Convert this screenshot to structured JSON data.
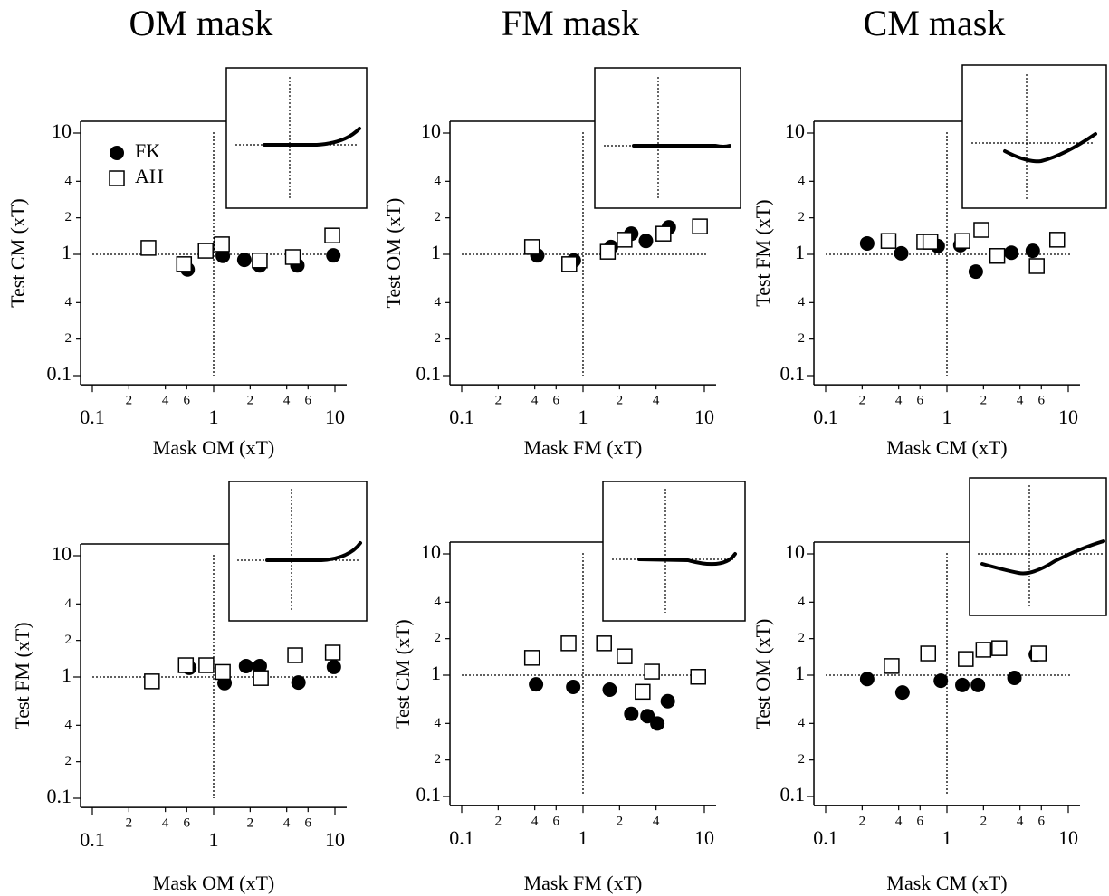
{
  "chart_data": [
    {
      "type": "scatter",
      "title": "OM mask",
      "x_label": "Mask OM (xT)",
      "y_label": "Test CM (xT)",
      "log_x": true,
      "log_y": true,
      "legend": true,
      "xlim": [
        0.08,
        12.5
      ],
      "ylim": [
        0.084,
        12.5
      ],
      "xticks": [
        0.1,
        {
          "value": 0.2,
          "label": "2"
        },
        {
          "value": 0.4,
          "label": "4"
        },
        {
          "value": 0.6,
          "label": "6"
        },
        1,
        2,
        4,
        6,
        10
      ],
      "yticks": [
        0.1,
        {
          "value": 0.2,
          "label": "2"
        },
        {
          "value": 0.4,
          "label": "4"
        },
        1,
        2,
        4,
        10
      ],
      "hline": 1,
      "vline": 1,
      "series": [
        {
          "name": "FK",
          "color": "#000000",
          "marker": "circle",
          "x": [
            0.61,
            1.19,
            1.79,
            2.4,
            4.9,
            9.7
          ],
          "values": [
            0.75,
            0.97,
            0.9,
            0.81,
            0.81,
            0.98
          ]
        },
        {
          "name": "AH",
          "color": "#000000",
          "marker": "square",
          "x": [
            0.29,
            0.57,
            0.86,
            1.17,
            2.4,
            4.5,
            9.5
          ],
          "values": [
            1.13,
            0.83,
            1.07,
            1.21,
            0.89,
            0.95,
            1.43
          ]
        }
      ]
    },
    {
      "type": "scatter",
      "title": "FM mask",
      "x_label": "Mask FM (xT)",
      "y_label": "Test OM (xT)",
      "log_x": true,
      "log_y": true,
      "xlim": [
        0.08,
        12.5
      ],
      "ylim": [
        0.084,
        12.5
      ],
      "xticks": [
        0.1,
        {
          "value": 0.2,
          "label": "2"
        },
        {
          "value": 0.4,
          "label": "4"
        },
        {
          "value": 0.6,
          "label": "6"
        },
        1,
        2,
        4,
        10
      ],
      "yticks": [
        0.1,
        {
          "value": 0.2,
          "label": "2"
        },
        {
          "value": 0.4,
          "label": "4"
        },
        1,
        2,
        4,
        10
      ],
      "hline": 1,
      "vline": 1,
      "series": [
        {
          "color": "#000000",
          "marker": "circle",
          "x": [
            0.42,
            0.84,
            1.7,
            2.5,
            3.3,
            5.1
          ],
          "values": [
            0.98,
            0.89,
            1.15,
            1.48,
            1.29,
            1.67
          ]
        },
        {
          "color": "#000000",
          "marker": "square",
          "x": [
            0.38,
            0.77,
            1.6,
            2.2,
            4.6,
            9.2
          ],
          "values": [
            1.15,
            0.83,
            1.05,
            1.32,
            1.48,
            1.7
          ]
        }
      ]
    },
    {
      "type": "scatter",
      "title": "CM mask",
      "x_label": "Mask CM (xT)",
      "y_label": "Test FM (xT)",
      "log_x": true,
      "log_y": true,
      "xlim": [
        0.08,
        12.5
      ],
      "ylim": [
        0.084,
        12.5
      ],
      "xticks": [
        0.1,
        {
          "value": 0.2,
          "label": "2"
        },
        {
          "value": 0.4,
          "label": "4"
        },
        {
          "value": 0.6,
          "label": "6"
        },
        1,
        2,
        4,
        6,
        10
      ],
      "yticks": [
        0.1,
        {
          "value": 0.2,
          "label": "2"
        },
        {
          "value": 0.4,
          "label": "4"
        },
        1,
        2,
        4,
        10
      ],
      "hline": 1,
      "vline": 1,
      "series": [
        {
          "color": "#000000",
          "marker": "circle",
          "x": [
            0.22,
            0.42,
            0.84,
            1.29,
            1.73,
            3.4,
            5.1
          ],
          "values": [
            1.23,
            1.02,
            1.17,
            1.19,
            0.72,
            1.03,
            1.07
          ]
        },
        {
          "color": "#000000",
          "marker": "square",
          "x": [
            0.33,
            0.65,
            0.73,
            1.34,
            1.92,
            2.6,
            5.5,
            8.1
          ],
          "values": [
            1.29,
            1.27,
            1.27,
            1.29,
            1.59,
            0.97,
            0.8,
            1.32
          ]
        }
      ]
    },
    {
      "type": "scatter",
      "x_label": "Mask OM (xT)",
      "y_label": "Test FM (xT)",
      "log_x": true,
      "log_y": true,
      "xlim": [
        0.08,
        12.5
      ],
      "ylim": [
        0.084,
        12.5
      ],
      "xticks": [
        0.1,
        {
          "value": 0.2,
          "label": "2"
        },
        {
          "value": 0.4,
          "label": "4"
        },
        {
          "value": 0.6,
          "label": "6"
        },
        1,
        2,
        4,
        6,
        10
      ],
      "yticks": [
        0.1,
        {
          "value": 0.2,
          "label": "2"
        },
        {
          "value": 0.4,
          "label": "4"
        },
        1,
        2,
        4,
        10
      ],
      "hline": 1,
      "vline": 1,
      "series": [
        {
          "color": "#000000",
          "marker": "circle",
          "x": [
            0.63,
            1.23,
            1.85,
            2.4,
            5.0,
            9.8
          ],
          "values": [
            1.19,
            0.89,
            1.23,
            1.23,
            0.9,
            1.21
          ]
        },
        {
          "color": "#000000",
          "marker": "square",
          "x": [
            0.31,
            0.59,
            0.87,
            1.19,
            2.45,
            4.7,
            9.6
          ],
          "values": [
            0.92,
            1.25,
            1.25,
            1.1,
            0.98,
            1.51,
            1.59
          ]
        }
      ]
    },
    {
      "type": "scatter",
      "x_label": "Mask FM (xT)",
      "y_label": "Test CM (xT)",
      "log_x": true,
      "log_y": true,
      "xlim": [
        0.08,
        12.5
      ],
      "ylim": [
        0.084,
        12.5
      ],
      "xticks": [
        0.1,
        {
          "value": 0.2,
          "label": "2"
        },
        {
          "value": 0.4,
          "label": "4"
        },
        {
          "value": 0.6,
          "label": "6"
        },
        1,
        2,
        4,
        10
      ],
      "yticks": [
        0.1,
        {
          "value": 0.2,
          "label": "2"
        },
        {
          "value": 0.4,
          "label": "4"
        },
        1,
        2,
        4,
        10
      ],
      "hline": 1,
      "vline": 1,
      "series": [
        {
          "color": "#000000",
          "marker": "circle",
          "x": [
            0.41,
            0.83,
            1.66,
            2.5,
            3.4,
            4.1,
            5.0
          ],
          "values": [
            0.84,
            0.8,
            0.76,
            0.48,
            0.46,
            0.4,
            0.61
          ]
        },
        {
          "color": "#000000",
          "marker": "square",
          "x": [
            0.38,
            0.76,
            1.49,
            2.2,
            3.1,
            3.7,
            8.9
          ],
          "values": [
            1.39,
            1.83,
            1.83,
            1.43,
            0.73,
            1.07,
            0.97
          ]
        }
      ]
    },
    {
      "type": "scatter",
      "x_label": "Mask CM (xT)",
      "y_label": "Test OM (xT)",
      "log_x": true,
      "log_y": true,
      "xlim": [
        0.08,
        12.5
      ],
      "ylim": [
        0.084,
        12.5
      ],
      "xticks": [
        0.1,
        {
          "value": 0.2,
          "label": "2"
        },
        {
          "value": 0.4,
          "label": "4"
        },
        {
          "value": 0.6,
          "label": "6"
        },
        1,
        2,
        4,
        6,
        10
      ],
      "yticks": [
        0.1,
        {
          "value": 0.2,
          "label": "2"
        },
        {
          "value": 0.4,
          "label": "4"
        },
        1,
        2,
        4,
        10
      ],
      "hline": 1,
      "vline": 1,
      "series": [
        {
          "color": "#000000",
          "marker": "circle",
          "x": [
            0.22,
            0.43,
            0.89,
            1.34,
            1.8,
            3.6,
            5.4
          ],
          "values": [
            0.93,
            0.72,
            0.9,
            0.83,
            0.83,
            0.95,
            1.48
          ]
        },
        {
          "color": "#000000",
          "marker": "square",
          "x": [
            0.35,
            0.7,
            1.43,
            2.0,
            2.7,
            5.7
          ],
          "values": [
            1.19,
            1.51,
            1.36,
            1.62,
            1.67,
            1.51
          ]
        }
      ]
    }
  ]
}
